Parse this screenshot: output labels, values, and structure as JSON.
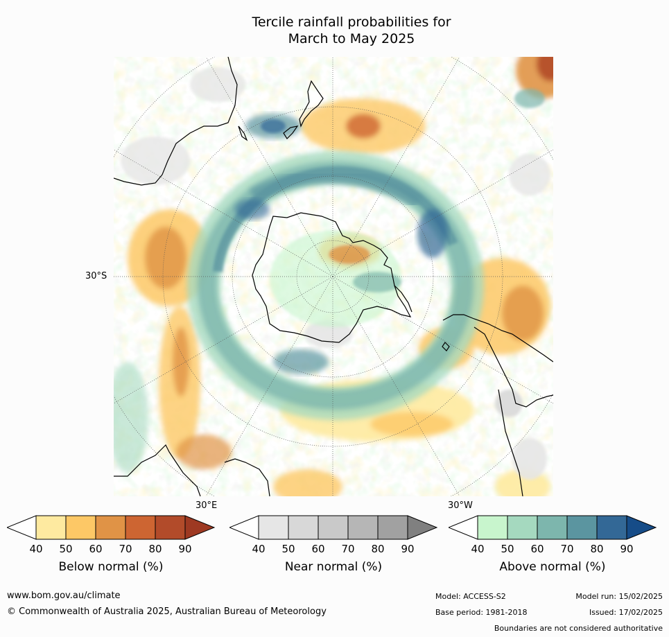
{
  "title": {
    "line1": "Tercile rainfall probabilities for",
    "line2": "March to May 2025"
  },
  "map": {
    "projection": "south polar stereographic",
    "lat_label": "30°S",
    "lon_label_east": "30°E",
    "lon_label_west": "30°W"
  },
  "legends": [
    {
      "id": "below",
      "title": "Below normal (%)",
      "ticks": [
        "40",
        "50",
        "60",
        "70",
        "80",
        "90"
      ],
      "colors": [
        "#ffffff",
        "#feeaa0",
        "#fdc866",
        "#e09346",
        "#cd6532",
        "#b24b2a",
        "#9e3922"
      ]
    },
    {
      "id": "near",
      "title": "Near normal (%)",
      "ticks": [
        "40",
        "50",
        "60",
        "70",
        "80",
        "90"
      ],
      "colors": [
        "#ffffff",
        "#e6e6e6",
        "#d8d8d8",
        "#c9c9c9",
        "#b6b6b6",
        "#a1a1a1",
        "#808080"
      ]
    },
    {
      "id": "above",
      "title": "Above normal (%)",
      "ticks": [
        "40",
        "50",
        "60",
        "70",
        "80",
        "90"
      ],
      "colors": [
        "#ffffff",
        "#c8f5cd",
        "#a5d9bf",
        "#7db6ad",
        "#5b95a0",
        "#336896",
        "#164c88"
      ]
    }
  ],
  "footer": {
    "url": "www.bom.gov.au/climate",
    "copyright": "© Commonwealth of Australia 2025, Australian Bureau of Meteorology",
    "model": "Model: ACCESS-S2",
    "base_period": "Base period: 1981-2018",
    "model_run": "Model run: 15/02/2025",
    "issued": "Issued: 17/02/2025",
    "disclaimer": "Boundaries are not considered authoritative"
  }
}
